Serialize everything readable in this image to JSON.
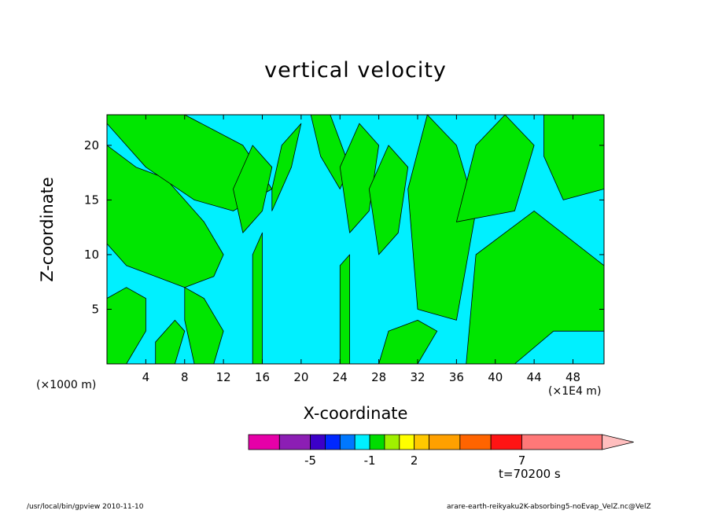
{
  "chart_data": {
    "type": "contour",
    "title": "vertical velocity",
    "xlabel": "X-coordinate",
    "ylabel": "Z-coordinate",
    "x_unit_label": "(×1E4 m)",
    "y_unit_label": "(×1000 m)",
    "xlim": [
      0,
      51.2
    ],
    "ylim": [
      0,
      22.8
    ],
    "x_ticks": [
      4,
      8,
      12,
      16,
      20,
      24,
      28,
      32,
      36,
      40,
      44,
      48
    ],
    "y_ticks": [
      5,
      10,
      15,
      20
    ],
    "time_label": "t=70200 s",
    "colors": {
      "positive_fill": "#00e600",
      "near_zero_fill": "#00f0ff",
      "contour_line": "#000000"
    },
    "colorbar": {
      "levels": [
        -7,
        -6,
        -5,
        -4,
        -3,
        -2,
        -1,
        0,
        1,
        2,
        3,
        4,
        5,
        7,
        10
      ],
      "colors": [
        "#e600a8",
        "#8c1eb4",
        "#3c00c8",
        "#0028ff",
        "#0078ff",
        "#00f0ff",
        "#00dc00",
        "#a0f000",
        "#ffff00",
        "#ffc800",
        "#ffa000",
        "#ff6400",
        "#ff1414",
        "#ff7878",
        "#ffbebe"
      ],
      "labels": [
        "-5",
        "-1",
        "2",
        "7"
      ],
      "label_levels": [
        -5,
        -1,
        2,
        7
      ]
    },
    "regions": [
      {
        "x": [
          0,
          3,
          6,
          8,
          10,
          12,
          11,
          8,
          5,
          2,
          0
        ],
        "z": [
          20,
          18,
          17,
          15,
          13,
          10,
          8,
          7,
          8,
          9,
          11
        ]
      },
      {
        "x": [
          0,
          2,
          4,
          4,
          2,
          0
        ],
        "z": [
          0,
          0,
          3,
          6,
          7,
          6
        ]
      },
      {
        "x": [
          5,
          7,
          8,
          7,
          5
        ],
        "z": [
          0,
          0,
          3,
          4,
          2
        ]
      },
      {
        "x": [
          9,
          11,
          12,
          10,
          8,
          8
        ],
        "z": [
          0,
          0,
          3,
          6,
          7,
          4
        ]
      },
      {
        "x": [
          0,
          8,
          14,
          17,
          13,
          9,
          4,
          1,
          0
        ],
        "z": [
          22.8,
          22.8,
          20,
          16,
          14,
          15,
          18,
          21,
          22
        ]
      },
      {
        "x": [
          14,
          16,
          17,
          15,
          13
        ],
        "z": [
          12,
          14,
          18,
          20,
          16
        ]
      },
      {
        "x": [
          17,
          19,
          20,
          18,
          17
        ],
        "z": [
          14,
          18,
          22,
          20,
          16
        ]
      },
      {
        "x": [
          21,
          23,
          25,
          24,
          22
        ],
        "z": [
          22.8,
          22.8,
          18,
          16,
          19
        ]
      },
      {
        "x": [
          25,
          27,
          28,
          26,
          24
        ],
        "z": [
          12,
          14,
          20,
          22,
          18
        ]
      },
      {
        "x": [
          28,
          30,
          31,
          29,
          27
        ],
        "z": [
          10,
          12,
          18,
          20,
          16
        ]
      },
      {
        "x": [
          32,
          36,
          38,
          36,
          33,
          31
        ],
        "z": [
          5,
          4,
          14,
          20,
          22.8,
          16
        ]
      },
      {
        "x": [
          36,
          42,
          44,
          41,
          38
        ],
        "z": [
          13,
          14,
          20,
          22.8,
          20
        ]
      },
      {
        "x": [
          45,
          51.2,
          51.2,
          47,
          45
        ],
        "z": [
          22.8,
          22.8,
          16,
          15,
          19
        ]
      },
      {
        "x": [
          37,
          42,
          46,
          51.2,
          51.2,
          44,
          38
        ],
        "z": [
          0,
          0,
          3,
          3,
          9,
          14,
          10
        ]
      },
      {
        "x": [
          28,
          32,
          34,
          32,
          29
        ],
        "z": [
          0,
          0,
          3,
          4,
          3
        ]
      },
      {
        "x": [
          15,
          16,
          16,
          15
        ],
        "z": [
          0,
          0,
          12,
          10
        ]
      },
      {
        "x": [
          24,
          25,
          25,
          24
        ],
        "z": [
          0,
          0,
          10,
          9
        ]
      }
    ]
  },
  "footer": {
    "left": "/usr/local/bin/gpview  2010-11-10",
    "right": "arare-earth-reikyaku2K-absorbing5-noEvap_VelZ.nc@VelZ"
  }
}
